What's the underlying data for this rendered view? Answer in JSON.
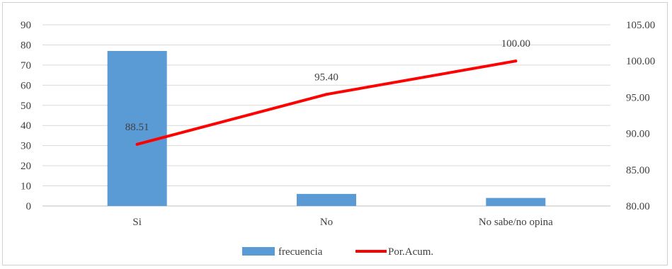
{
  "chart_data": {
    "type": "bar+line",
    "categories": [
      "Si",
      "No",
      "No sabe/no opina"
    ],
    "series": [
      {
        "name": "frecuencia",
        "type": "bar",
        "axis": "left",
        "values": [
          77,
          6,
          4
        ],
        "color": "#5b9bd5"
      },
      {
        "name": "Por.Acum.",
        "type": "line",
        "axis": "right",
        "values": [
          88.51,
          95.4,
          100.0
        ],
        "color": "#ff0000"
      }
    ],
    "data_labels": [
      "88.51",
      "95.40",
      "100.00"
    ],
    "y_left": {
      "min": 0,
      "max": 90,
      "step": 10,
      "ticks": [
        "0",
        "10",
        "20",
        "30",
        "40",
        "50",
        "60",
        "70",
        "80",
        "90"
      ]
    },
    "y_right": {
      "min": 80,
      "max": 105,
      "step": 5,
      "ticks": [
        "80.00",
        "85.00",
        "90.00",
        "95.00",
        "100.00",
        "105.00"
      ]
    },
    "grid": true,
    "legend_position": "bottom"
  }
}
